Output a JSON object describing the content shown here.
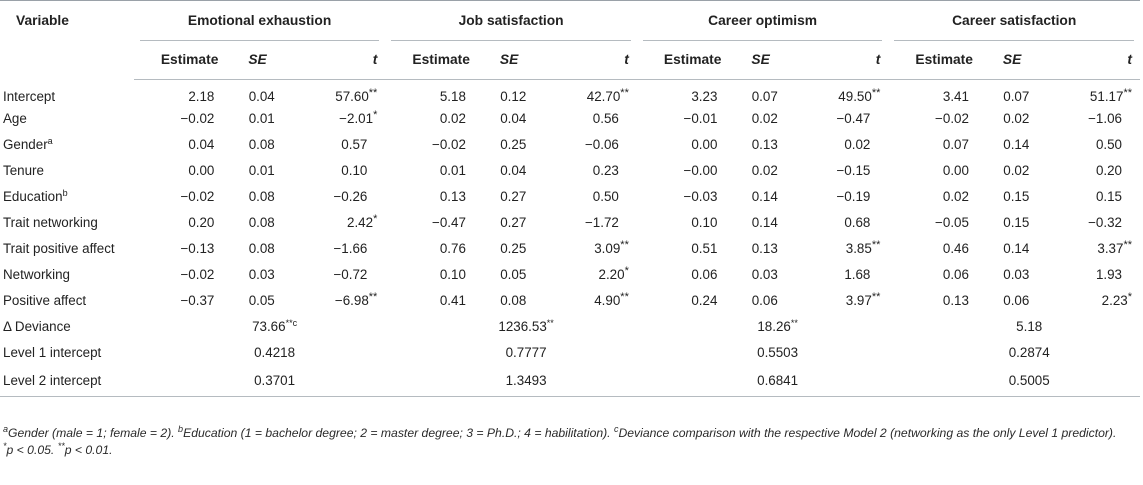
{
  "header": {
    "variable": "Variable",
    "groups": [
      "Emotional exhaustion",
      "Job satisfaction",
      "Career optimism",
      "Career satisfaction"
    ],
    "estimate": "Estimate",
    "se": "SE",
    "t": "t"
  },
  "rows": [
    {
      "label": "Intercept",
      "sup": "",
      "v": [
        "2.18",
        "0.04",
        "57.60",
        "5.18",
        "0.12",
        "42.70",
        "3.23",
        "0.07",
        "49.50",
        "3.41",
        "0.07",
        "51.17"
      ],
      "s": [
        "",
        "",
        "**",
        "",
        "",
        "**",
        "",
        "",
        "**",
        "",
        "",
        "**"
      ]
    },
    {
      "label": "Age",
      "sup": "",
      "v": [
        "−0.02",
        "0.01",
        "−2.01",
        "0.02",
        "0.04",
        "0.56",
        "−0.01",
        "0.02",
        "−0.47",
        "−0.02",
        "0.02",
        "−1.06"
      ],
      "s": [
        "",
        "",
        "*",
        "",
        "",
        "",
        "",
        "",
        "",
        "",
        "",
        ""
      ]
    },
    {
      "label": "Gender",
      "sup": "a",
      "v": [
        "0.04",
        "0.08",
        "0.57",
        "−0.02",
        "0.25",
        "−0.06",
        "0.00",
        "0.13",
        "0.02",
        "0.07",
        "0.14",
        "0.50"
      ],
      "s": [
        "",
        "",
        "",
        "",
        "",
        "",
        "",
        "",
        "",
        "",
        "",
        ""
      ]
    },
    {
      "label": "Tenure",
      "sup": "",
      "v": [
        "0.00",
        "0.01",
        "0.10",
        "0.01",
        "0.04",
        "0.23",
        "−0.00",
        "0.02",
        "−0.15",
        "0.00",
        "0.02",
        "0.20"
      ],
      "s": [
        "",
        "",
        "",
        "",
        "",
        "",
        "",
        "",
        "",
        "",
        "",
        ""
      ]
    },
    {
      "label": "Education",
      "sup": "b",
      "v": [
        "−0.02",
        "0.08",
        "−0.26",
        "0.13",
        "0.27",
        "0.50",
        "−0.03",
        "0.14",
        "−0.19",
        "0.02",
        "0.15",
        "0.15"
      ],
      "s": [
        "",
        "",
        "",
        "",
        "",
        "",
        "",
        "",
        "",
        "",
        "",
        ""
      ]
    },
    {
      "label": "Trait networking",
      "sup": "",
      "v": [
        "0.20",
        "0.08",
        "2.42",
        "−0.47",
        "0.27",
        "−1.72",
        "0.10",
        "0.14",
        "0.68",
        "−0.05",
        "0.15",
        "−0.32"
      ],
      "s": [
        "",
        "",
        "*",
        "",
        "",
        "",
        "",
        "",
        "",
        "",
        "",
        ""
      ]
    },
    {
      "label": "Trait positive affect",
      "sup": "",
      "v": [
        "−0.13",
        "0.08",
        "−1.66",
        "0.76",
        "0.25",
        "3.09",
        "0.51",
        "0.13",
        "3.85",
        "0.46",
        "0.14",
        "3.37"
      ],
      "s": [
        "",
        "",
        "",
        "",
        "",
        "**",
        "",
        "",
        "**",
        "",
        "",
        "**"
      ]
    },
    {
      "label": "Networking",
      "sup": "",
      "v": [
        "−0.02",
        "0.03",
        "−0.72",
        "0.10",
        "0.05",
        "2.20",
        "0.06",
        "0.03",
        "1.68",
        "0.06",
        "0.03",
        "1.93"
      ],
      "s": [
        "",
        "",
        "",
        "",
        "",
        "*",
        "",
        "",
        "",
        "",
        "",
        ""
      ]
    },
    {
      "label": "Positive affect",
      "sup": "",
      "v": [
        "−0.37",
        "0.05",
        "−6.98",
        "0.41",
        "0.08",
        "4.90",
        "0.24",
        "0.06",
        "3.97",
        "0.13",
        "0.06",
        "2.23"
      ],
      "s": [
        "",
        "",
        "**",
        "",
        "",
        "**",
        "",
        "",
        "**",
        "",
        "",
        "*"
      ]
    }
  ],
  "deviance": {
    "label": "Δ Deviance",
    "v": [
      "73.66",
      "1236.53",
      "18.26",
      "5.18"
    ],
    "s": [
      "**",
      "**",
      "**",
      ""
    ],
    "sup": [
      "c",
      "",
      "",
      ""
    ]
  },
  "level1": {
    "label": "Level 1 intercept",
    "v": [
      "0.4218",
      "0.7777",
      "0.5503",
      "0.2874"
    ]
  },
  "level2": {
    "label": "Level 2 intercept",
    "v": [
      "0.3701",
      "1.3493",
      "0.6841",
      "0.5005"
    ]
  },
  "notes": {
    "a_mark": "a",
    "a_text": "Gender (male = 1; female = 2). ",
    "b_mark": "b",
    "b_text": "Education (1 = bachelor degree; 2 = master degree; 3 = Ph.D.; 4 = habilitation). ",
    "c_mark": "c",
    "c_text": "Deviance comparison with the respective Model 2 (networking as the only Level 1 predictor).",
    "sig_star1": "*",
    "sig_text1": "p < 0.05. ",
    "sig_star2": "**",
    "sig_text2": "p < 0.01."
  }
}
